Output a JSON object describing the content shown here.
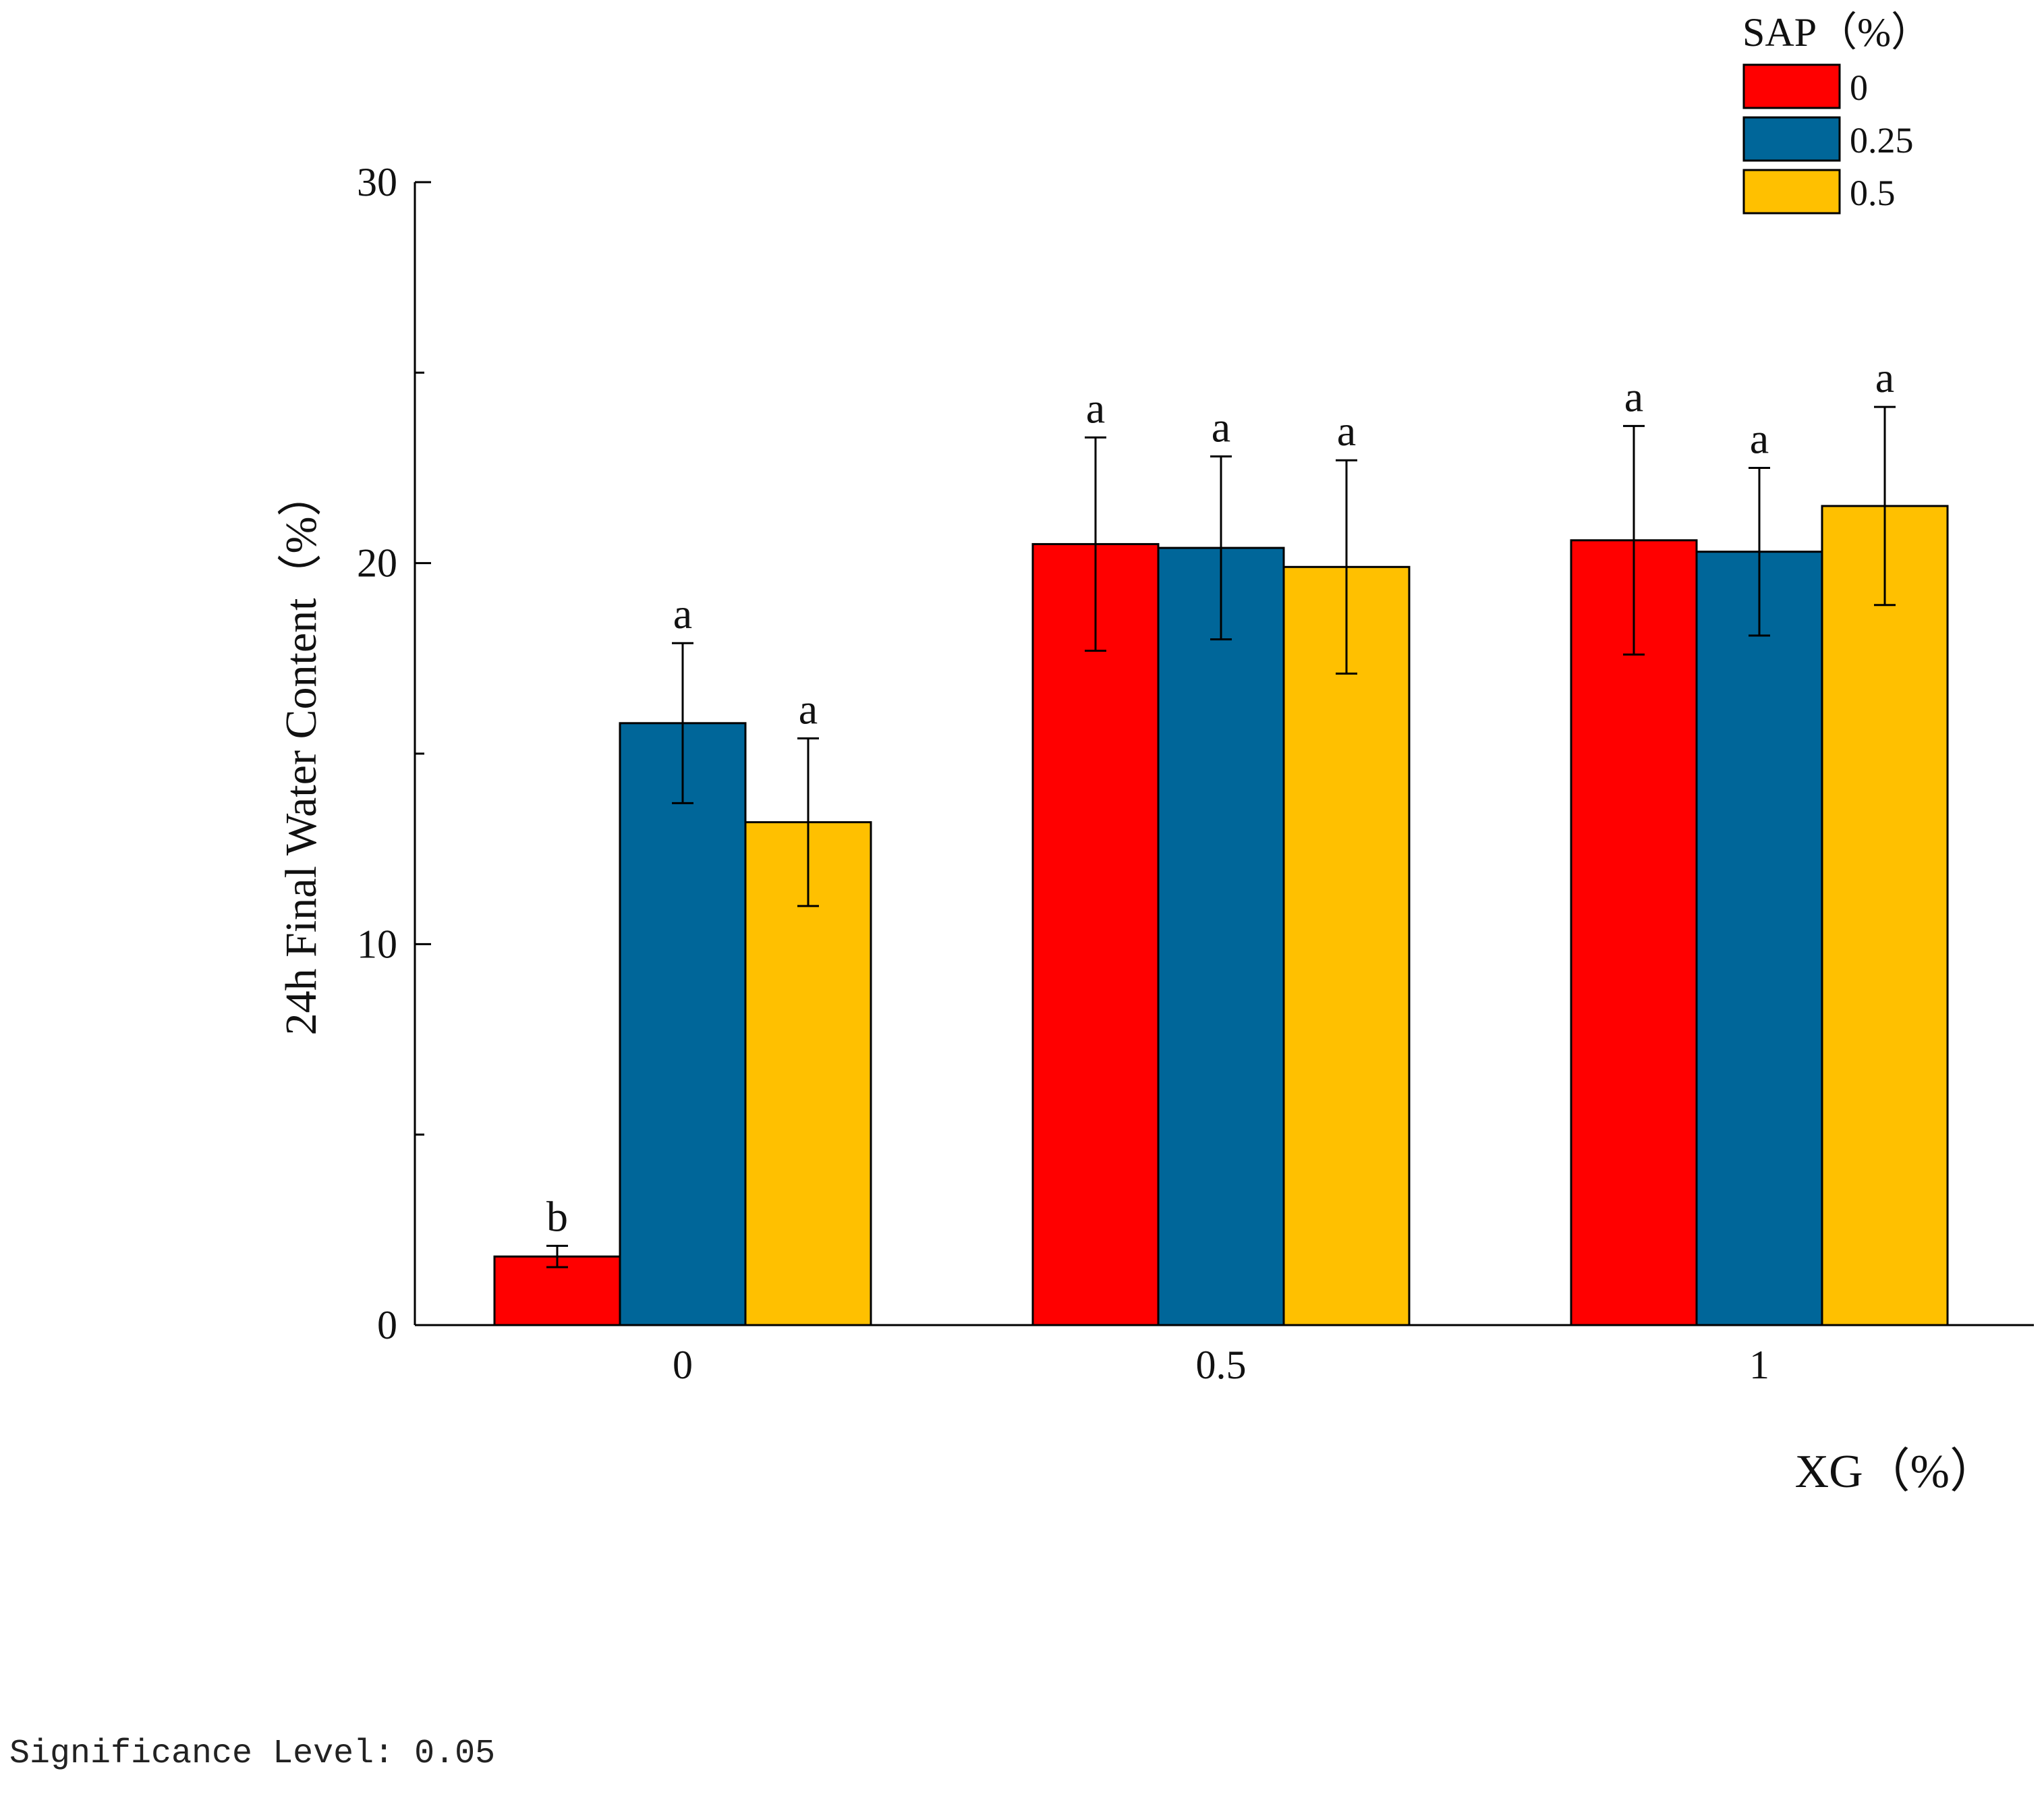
{
  "chart_data": {
    "type": "bar",
    "xlabel": "XG（%）",
    "ylabel": "24h Final Water Content（%）",
    "ylim": [
      0,
      30
    ],
    "yticks": [
      0,
      10,
      20,
      30
    ],
    "yticks_minor": [
      5,
      15,
      25
    ],
    "categories": [
      "0",
      "0.5",
      "1"
    ],
    "legend": {
      "title": "SAP（%）",
      "position": "top-right"
    },
    "series": [
      {
        "name": "0",
        "color": "#ff0000",
        "values": [
          1.8,
          20.5,
          20.6
        ],
        "errors": [
          0.28,
          2.8,
          3.0
        ],
        "labels": [
          "b",
          "a",
          "a"
        ]
      },
      {
        "name": "0.25",
        "color": "#006699",
        "values": [
          15.8,
          20.4,
          20.3
        ],
        "errors": [
          2.1,
          2.4,
          2.2
        ],
        "labels": [
          "a",
          "a",
          "a"
        ]
      },
      {
        "name": "0.5",
        "color": "#ffc000",
        "values": [
          13.2,
          19.9,
          21.5
        ],
        "errors": [
          2.2,
          2.8,
          2.6
        ],
        "labels": [
          "a",
          "a",
          "a"
        ]
      }
    ]
  },
  "footer": {
    "significance": "Significance Level: 0.05"
  }
}
